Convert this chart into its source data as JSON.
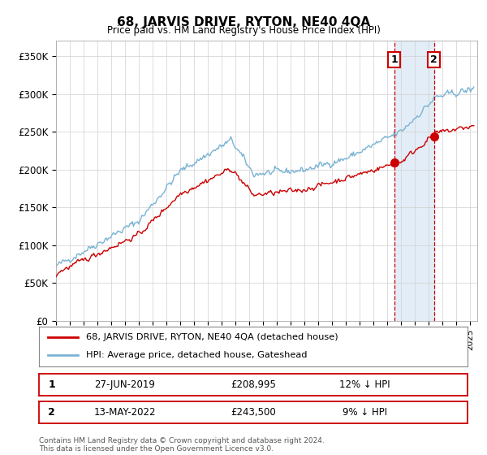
{
  "title": "68, JARVIS DRIVE, RYTON, NE40 4QA",
  "subtitle": "Price paid vs. HM Land Registry's House Price Index (HPI)",
  "ylim": [
    0,
    370000
  ],
  "xlim_start": 1995.0,
  "xlim_end": 2025.5,
  "hpi_color": "#7ab3d4",
  "price_color": "#cc0000",
  "marker1_date": 2019.48,
  "marker1_price": 208995,
  "marker1_label": "27-JUN-2019",
  "marker1_pct": "12% ↓ HPI",
  "marker2_date": 2022.36,
  "marker2_price": 243500,
  "marker2_label": "13-MAY-2022",
  "marker2_pct": "9% ↓ HPI",
  "legend_line1": "68, JARVIS DRIVE, RYTON, NE40 4QA (detached house)",
  "legend_line2": "HPI: Average price, detached house, Gateshead",
  "footnote": "Contains HM Land Registry data © Crown copyright and database right 2024.\nThis data is licensed under the Open Government Licence v3.0.",
  "bg_shading_start": 2019.48,
  "bg_shading_end": 2022.36
}
